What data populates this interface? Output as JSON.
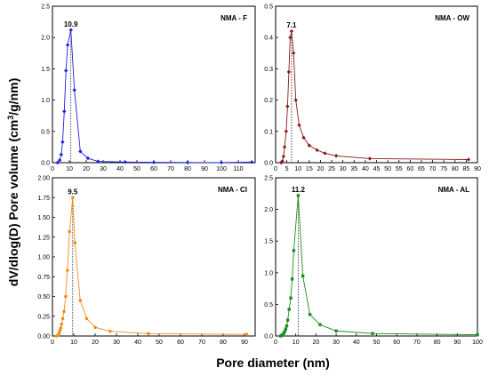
{
  "figure": {
    "ylabel_main": "dV/dlog(D) Pore volume (cm",
    "ylabel_sup": "3",
    "ylabel_tail": "/g/nm)",
    "xlabel": "Pore diameter (nm)"
  },
  "chart_data": [
    {
      "type": "line",
      "label": "NMA - F",
      "peak_label": "10.9",
      "peak_x": 10.9,
      "color": "#1f1fe6",
      "marker": "diamond",
      "xlim": [
        0,
        120
      ],
      "ylim": [
        0,
        2.5
      ],
      "xticks": [
        0,
        10,
        20,
        30,
        40,
        50,
        60,
        70,
        80,
        90,
        100,
        110,
        120
      ],
      "xtick_labels": [
        "0",
        "10",
        "20",
        "30",
        "40",
        "50",
        "60",
        "70",
        "80",
        "90",
        "100",
        "110",
        ""
      ],
      "yticks": [
        0,
        0.5,
        1.0,
        1.5,
        2.0,
        2.5
      ],
      "ytick_labels": [
        "0.0",
        "0.5",
        "1.0",
        "1.5",
        "2.0",
        "2.5"
      ],
      "x": [
        3.0,
        4.3,
        5.2,
        6.0,
        7.0,
        8.0,
        9.0,
        10.9,
        13.0,
        16.5,
        21.0,
        27.0,
        43.0,
        60.0,
        80.0,
        100.0,
        118.0
      ],
      "y": [
        0.0,
        0.04,
        0.13,
        0.33,
        0.82,
        1.47,
        1.88,
        2.12,
        1.16,
        0.18,
        0.07,
        0.02,
        0.01,
        0.005,
        0.003,
        0.002,
        0.01
      ]
    },
    {
      "type": "line",
      "label": "NMA - OW",
      "peak_label": "7.1",
      "peak_x": 7.1,
      "color": "#8b1a1a",
      "marker": "diamond",
      "xlim": [
        0,
        90
      ],
      "ylim": [
        0,
        0.5
      ],
      "xticks": [
        0,
        5,
        10,
        15,
        20,
        25,
        30,
        35,
        40,
        45,
        50,
        55,
        60,
        65,
        70,
        75,
        80,
        85,
        90
      ],
      "xtick_labels": [
        "0",
        "5",
        "10",
        "15",
        "20",
        "25",
        "30",
        "35",
        "40",
        "45",
        "50",
        "55",
        "60",
        "65",
        "70",
        "75",
        "80",
        "85",
        "90"
      ],
      "yticks": [
        0,
        0.1,
        0.2,
        0.3,
        0.4,
        0.5
      ],
      "ytick_labels": [
        "0.0",
        "0.1",
        "0.2",
        "0.3",
        "0.4",
        "0.5"
      ],
      "x": [
        2.5,
        3.0,
        3.5,
        4.0,
        4.7,
        5.3,
        5.9,
        6.5,
        7.1,
        8.0,
        9.0,
        10.5,
        12.5,
        15.0,
        18.5,
        22.0,
        27.0,
        42.0,
        86.0
      ],
      "y": [
        0.0,
        0.005,
        0.02,
        0.05,
        0.1,
        0.18,
        0.29,
        0.4,
        0.42,
        0.35,
        0.2,
        0.12,
        0.08,
        0.055,
        0.04,
        0.03,
        0.022,
        0.013,
        0.01
      ]
    },
    {
      "type": "line",
      "label": "NMA - CI",
      "peak_label": "9.5",
      "peak_x": 9.5,
      "color": "#f08c1e",
      "marker": "circle",
      "xlim": [
        0,
        95
      ],
      "ylim": [
        0,
        2.0
      ],
      "xticks": [
        0,
        10,
        20,
        30,
        40,
        50,
        60,
        70,
        80,
        90
      ],
      "xtick_labels": [
        "0",
        "10",
        "20",
        "30",
        "40",
        "50",
        "60",
        "70",
        "80",
        "90"
      ],
      "yticks": [
        0,
        0.25,
        0.5,
        0.75,
        1.0,
        1.25,
        1.5,
        1.75,
        2.0
      ],
      "ytick_labels": [
        "0.00",
        "0.25",
        "0.50",
        "0.75",
        "1.00",
        "1.25",
        "1.50",
        "1.75",
        "2.00"
      ],
      "x": [
        2.0,
        2.3,
        2.6,
        2.9,
        3.2,
        3.5,
        3.9,
        4.3,
        4.8,
        5.4,
        6.2,
        7.0,
        8.0,
        9.5,
        10.5,
        13.0,
        16.0,
        20.0,
        27.0,
        45.0,
        91.0
      ],
      "y": [
        0.0,
        0.005,
        0.01,
        0.02,
        0.04,
        0.07,
        0.1,
        0.15,
        0.22,
        0.31,
        0.5,
        0.83,
        1.32,
        1.75,
        1.18,
        0.45,
        0.22,
        0.11,
        0.06,
        0.03,
        0.02
      ]
    },
    {
      "type": "line",
      "label": "NMA - AL",
      "peak_label": "11.2",
      "peak_x": 11.2,
      "color": "#1e8c1e",
      "marker": "square",
      "xlim": [
        0,
        100
      ],
      "ylim": [
        0,
        2.5
      ],
      "xticks": [
        0,
        10,
        20,
        30,
        40,
        50,
        60,
        70,
        80,
        90,
        100
      ],
      "xtick_labels": [
        "0",
        "10",
        "20",
        "30",
        "40",
        "50",
        "60",
        "70",
        "80",
        "90",
        "100"
      ],
      "yticks": [
        0,
        0.5,
        1.0,
        1.5,
        2.0,
        2.5
      ],
      "ytick_labels": [
        "0.0",
        "0.5",
        "1.0",
        "1.5",
        "2.0",
        "2.5"
      ],
      "x": [
        2.5,
        3.0,
        3.5,
        4.0,
        4.5,
        5.0,
        5.5,
        6.0,
        6.7,
        7.5,
        8.2,
        9.0,
        11.2,
        13.5,
        17.0,
        22.0,
        30.0,
        48.0,
        100.0
      ],
      "y": [
        0.0,
        0.01,
        0.02,
        0.04,
        0.07,
        0.11,
        0.16,
        0.25,
        0.42,
        0.6,
        0.9,
        1.35,
        2.22,
        0.95,
        0.34,
        0.18,
        0.08,
        0.04,
        0.02
      ]
    }
  ]
}
